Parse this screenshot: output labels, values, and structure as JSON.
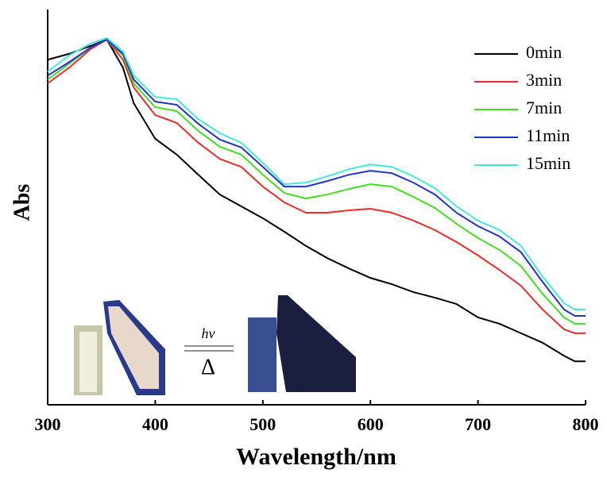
{
  "chart_data": {
    "type": "line",
    "xlabel": "Wavelength/nm",
    "ylabel": "Abs",
    "annotations": [
      "hv",
      "Δ"
    ],
    "x": [
      300,
      320,
      340,
      355,
      370,
      380,
      400,
      420,
      440,
      460,
      480,
      500,
      520,
      540,
      560,
      580,
      600,
      620,
      640,
      660,
      680,
      700,
      720,
      740,
      760,
      780,
      790,
      800
    ],
    "series": [
      {
        "name": "0min",
        "color": "#000000",
        "values": [
          0.873,
          0.888,
          0.908,
          0.924,
          0.853,
          0.763,
          0.673,
          0.633,
          0.582,
          0.532,
          0.502,
          0.472,
          0.438,
          0.402,
          0.371,
          0.345,
          0.321,
          0.305,
          0.285,
          0.271,
          0.255,
          0.221,
          0.205,
          0.181,
          0.157,
          0.124,
          0.11,
          0.11
        ]
      },
      {
        "name": "3min",
        "color": "#ee2a2a",
        "values": [
          0.813,
          0.853,
          0.9,
          0.924,
          0.873,
          0.803,
          0.733,
          0.713,
          0.663,
          0.622,
          0.602,
          0.552,
          0.512,
          0.486,
          0.486,
          0.492,
          0.496,
          0.486,
          0.466,
          0.442,
          0.412,
          0.378,
          0.341,
          0.301,
          0.241,
          0.191,
          0.181,
          0.181
        ]
      },
      {
        "name": "7min",
        "color": "#44dd22",
        "values": [
          0.823,
          0.863,
          0.904,
          0.924,
          0.884,
          0.813,
          0.753,
          0.743,
          0.693,
          0.653,
          0.633,
          0.582,
          0.536,
          0.522,
          0.532,
          0.546,
          0.558,
          0.552,
          0.526,
          0.498,
          0.458,
          0.422,
          0.392,
          0.351,
          0.281,
          0.221,
          0.205,
          0.205
        ]
      },
      {
        "name": "11min",
        "color": "#2233cc",
        "values": [
          0.833,
          0.867,
          0.904,
          0.924,
          0.888,
          0.823,
          0.767,
          0.759,
          0.711,
          0.671,
          0.651,
          0.602,
          0.552,
          0.552,
          0.566,
          0.582,
          0.592,
          0.586,
          0.562,
          0.532,
          0.486,
          0.452,
          0.426,
          0.386,
          0.311,
          0.241,
          0.225,
          0.225
        ]
      },
      {
        "name": "15min",
        "color": "#44e8dd",
        "values": [
          0.843,
          0.884,
          0.914,
          0.928,
          0.894,
          0.833,
          0.779,
          0.773,
          0.723,
          0.687,
          0.663,
          0.612,
          0.558,
          0.562,
          0.578,
          0.596,
          0.608,
          0.602,
          0.578,
          0.548,
          0.502,
          0.466,
          0.442,
          0.402,
          0.325,
          0.257,
          0.241,
          0.241
        ]
      }
    ],
    "xlim": [
      300,
      800
    ],
    "xticks": [
      300,
      400,
      500,
      600,
      700,
      800
    ],
    "ylim": [
      0,
      1
    ],
    "legend": "upper right"
  }
}
